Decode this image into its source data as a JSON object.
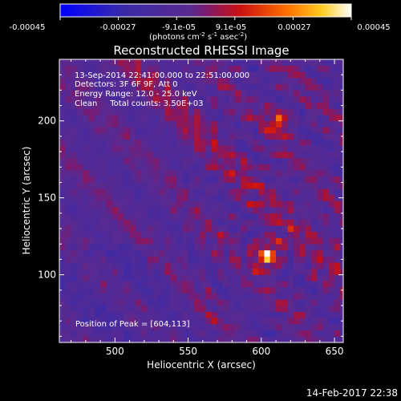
{
  "chart_data": {
    "type": "heatmap",
    "title": "Reconstructed RHESSI Image",
    "xlabel": "Heliocentric X (arcsec)",
    "ylabel": "Heliocentric Y (arcsec)",
    "xlim": [
      462,
      656
    ],
    "ylim": [
      56,
      240
    ],
    "x_ticks": [
      500,
      550,
      600,
      650
    ],
    "y_ticks": [
      100,
      150,
      200
    ],
    "colorbar": {
      "ticks": [
        "-0.00045",
        "-0.00027",
        "-9.1e-05",
        "9.1e-05",
        "0.00027",
        "0.00045"
      ],
      "range": [
        -0.00045,
        0.00045
      ],
      "units_text": "(photons cm",
      "units_exp1": "-2",
      "units_mid": " s",
      "units_exp2": "-1",
      "units_end": " asec",
      "units_exp3": "-2",
      "units_close": ")"
    },
    "annotations": [
      "13-Sep-2014 22:41:00.000 to 22:51:00.000",
      "Detectors: 3F 6F 9F, Att 0",
      "Energy Range: 12.0 - 25.0 keV",
      "Clean     Total counts: 3.50E+03"
    ],
    "peak_label": "Position of Peak = [604,113]",
    "peak_position": [
      604,
      113
    ],
    "secondary_sources": [
      [
        612,
        200
      ]
    ],
    "timestamp": "14-Feb-2017 22:38"
  }
}
